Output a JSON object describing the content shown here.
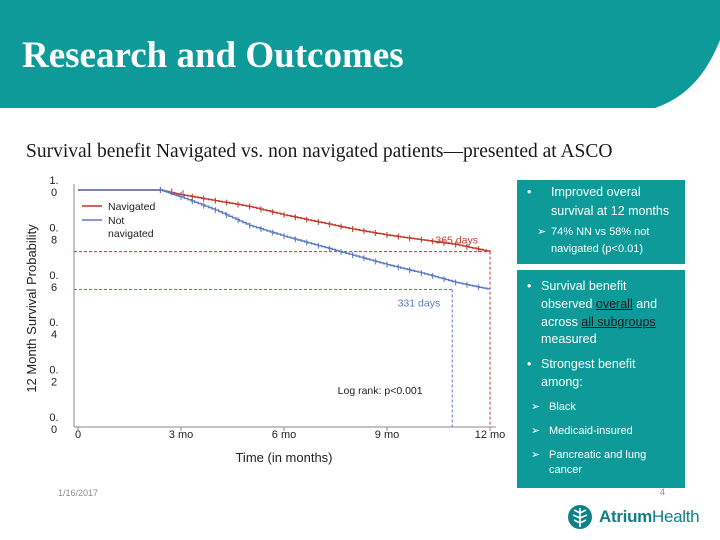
{
  "slide": {
    "title": "Research and Outcomes",
    "subtitle": "Survival benefit Navigated vs. non navigated patients—presented at ASCO",
    "date": "1/16/2017",
    "page_number": "4",
    "accent_color": "#0f9a9a",
    "logo": {
      "name_part1": "Atrium",
      "name_part2": "Health",
      "icon": "tree-leaf-icon"
    }
  },
  "chart_data": {
    "type": "line",
    "xlabel": "Time (in months)",
    "ylabel": "12 Month Survival Probability",
    "x_ticks": [
      "0",
      "3 mo",
      "6 mo",
      "9 mo",
      "12 mo"
    ],
    "x_tick_values": [
      0,
      3,
      6,
      9,
      12
    ],
    "y_ticks": [
      "1.0",
      "0.8",
      "0.6",
      "0.4",
      "0.2",
      "0.0"
    ],
    "y_tick_values": [
      1.0,
      0.8,
      0.6,
      0.4,
      0.2,
      0.0
    ],
    "xlim": [
      0,
      12
    ],
    "ylim": [
      0,
      1
    ],
    "legend_position": "top-left",
    "series": [
      {
        "name": "Navigated",
        "color": "#c0392b",
        "x": [
          0,
          2.4,
          3,
          4,
          5,
          6,
          7,
          8,
          9,
          10,
          11,
          12
        ],
        "y": [
          1.0,
          1.0,
          0.98,
          0.955,
          0.93,
          0.895,
          0.865,
          0.835,
          0.81,
          0.79,
          0.77,
          0.74
        ]
      },
      {
        "name": "Not navigated",
        "color": "#5b79c2",
        "x": [
          0,
          2.4,
          3,
          4,
          5,
          6,
          7,
          8,
          9,
          10,
          11,
          12
        ],
        "y": [
          1.0,
          1.0,
          0.97,
          0.915,
          0.85,
          0.805,
          0.765,
          0.725,
          0.685,
          0.65,
          0.61,
          0.58
        ]
      }
    ],
    "reference_lines": [
      {
        "label": "365 days",
        "y": 0.74,
        "x": 12,
        "color": "#c0392b"
      },
      {
        "label": "331 days",
        "y": 0.58,
        "x": 10.9,
        "color": "#5b79c2"
      }
    ],
    "annotation": "Log rank: p<0.001"
  },
  "panels": {
    "box1": {
      "bullet": "Improved overall survival at 12 months",
      "bullet_lines": [
        "Improved overal",
        "survival at 12 months"
      ],
      "sub_lines": [
        "74% NN vs 58% not",
        "navigated (p<0.01)"
      ]
    },
    "box2": {
      "bullet1_lines": [
        "Survival benefit"
      ],
      "bullet1_line2_prefix": "observed ",
      "bullet1_line2_hl": "overall",
      "bullet1_line2_suffix": " and",
      "bullet1_line3_prefix": "across ",
      "bullet1_line3_hl": "all subgroups",
      "bullet1_line4": "measured",
      "bullet2_lines": [
        "Strongest benefit",
        "among:"
      ],
      "sub_items": [
        "Black",
        "Medicaid-insured"
      ],
      "sub3_lines": [
        "Pancreatic and lung",
        "cancer"
      ]
    }
  }
}
